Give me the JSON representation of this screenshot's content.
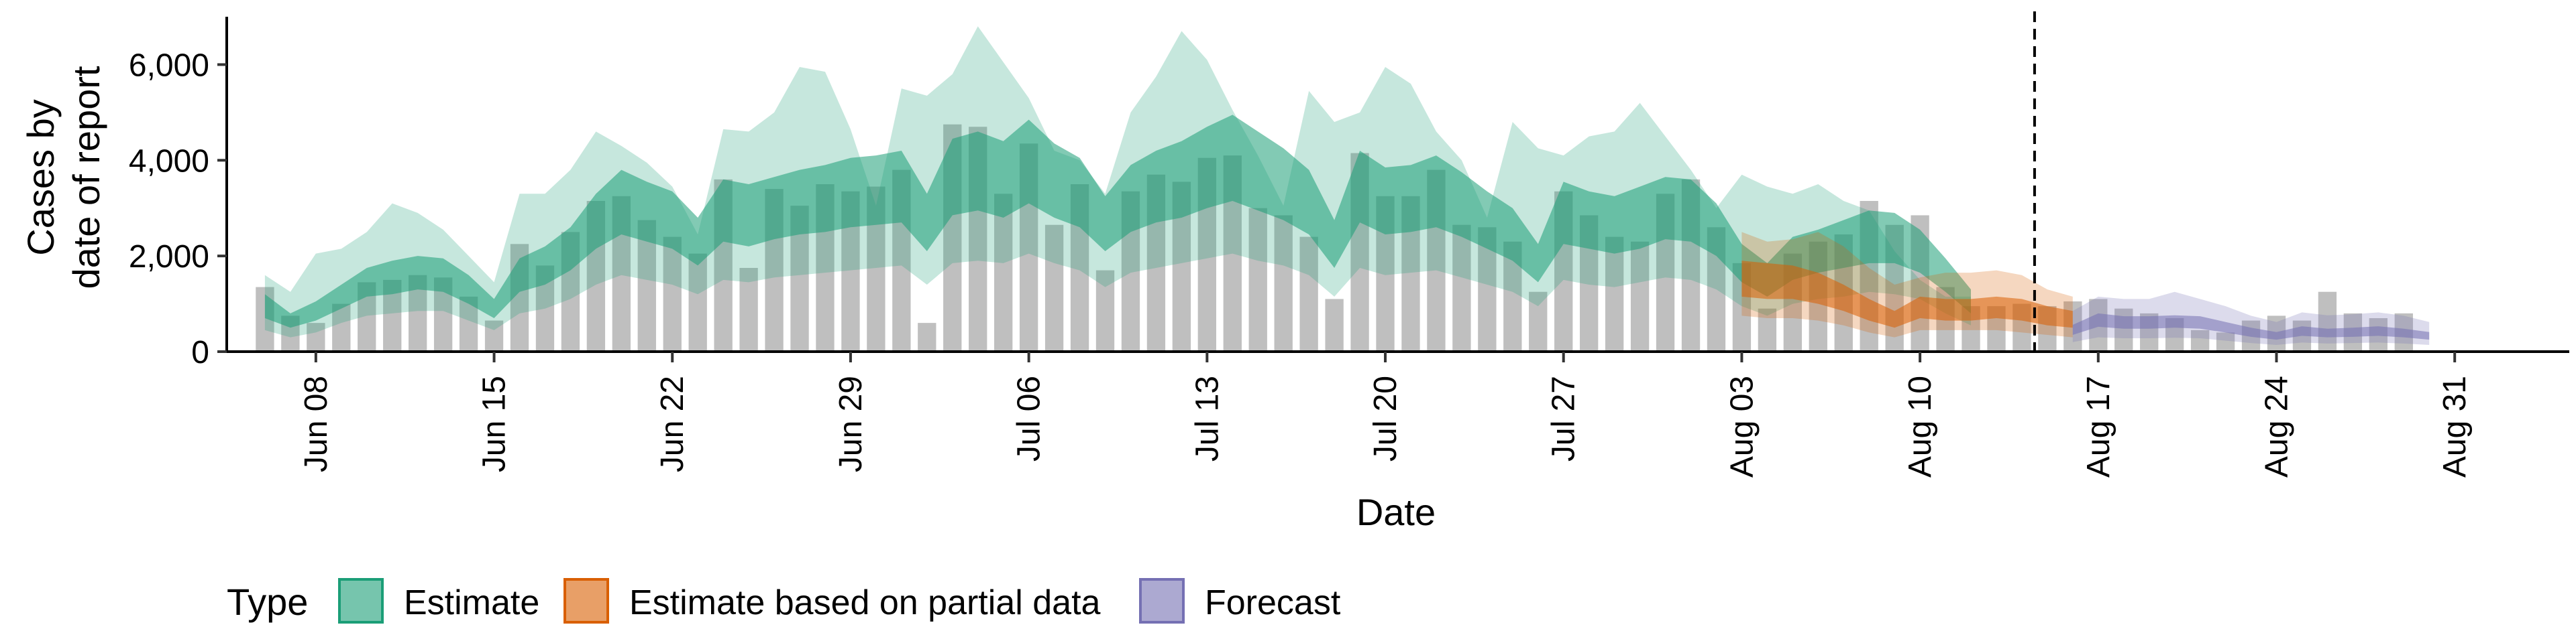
{
  "chart_data": {
    "type": "area",
    "title": "",
    "xlabel": "Date",
    "ylabel_lines": [
      "Cases by",
      "date of report"
    ],
    "ylim": [
      0,
      7000
    ],
    "yticks": [
      0,
      2000,
      4000,
      6000
    ],
    "ytick_labels": [
      "0",
      "2,000",
      "4,000",
      "6,000"
    ],
    "x_start": "2020-06-06",
    "xlim_days": [
      -1.5,
      90.5
    ],
    "xticks_days": [
      2,
      9,
      16,
      23,
      30,
      37,
      44,
      51,
      58,
      65,
      72,
      79,
      86
    ],
    "xtick_labels": [
      "Jun 08",
      "Jun 15",
      "Jun 22",
      "Jun 29",
      "Jul 06",
      "Jul 13",
      "Jul 20",
      "Jul 27",
      "Aug 03",
      "Aug 10",
      "Aug 17",
      "Aug 24",
      "Aug 31"
    ],
    "forecast_date_day": 69.5,
    "colors": {
      "bars": "#a9a9a9",
      "estimate": "#1b9e77",
      "partial": "#d95f02",
      "forecast": "#7570b3"
    },
    "legend": {
      "title": "Type",
      "entries": [
        {
          "key": "estimate",
          "label": "Estimate"
        },
        {
          "key": "partial",
          "label": "Estimate based on partial data"
        },
        {
          "key": "forecast",
          "label": "Forecast"
        }
      ]
    },
    "observed_cases": {
      "start_day": 0,
      "values": [
        1350,
        750,
        600,
        1000,
        1450,
        1500,
        1600,
        1550,
        1150,
        650,
        2250,
        1800,
        2500,
        3150,
        3250,
        2750,
        2400,
        2050,
        3600,
        1750,
        3400,
        3050,
        3500,
        3350,
        3450,
        3800,
        600,
        4750,
        4700,
        3300,
        4350,
        2650,
        3500,
        1700,
        3350,
        3700,
        3550,
        4050,
        4100,
        3000,
        2850,
        2400,
        1100,
        4150,
        3250,
        3250,
        3800,
        2650,
        2600,
        2300,
        1250,
        3350,
        2850,
        2400,
        2300,
        3300,
        3600,
        2600,
        1850,
        900,
        2050,
        2300,
        2450,
        3150,
        2650,
        2850,
        1350,
        950,
        950,
        1000,
        950,
        1050,
        1100,
        900,
        800,
        700,
        450,
        400,
        650,
        750,
        650,
        1250,
        800,
        700,
        800
      ]
    },
    "estimate": {
      "start_day": 0,
      "median": [
        950,
        650,
        850,
        1150,
        1450,
        1550,
        1650,
        1600,
        1300,
        900,
        1600,
        1800,
        2150,
        2700,
        3100,
        2900,
        2750,
        2300,
        2950,
        2850,
        3000,
        3100,
        3200,
        3300,
        3350,
        3450,
        2700,
        3650,
        3750,
        3600,
        3950,
        3550,
        3300,
        2650,
        3200,
        3450,
        3600,
        3850,
        4050,
        3750,
        3500,
        3100,
        2250,
        3450,
        3150,
        3200,
        3350,
        3050,
        2750,
        2450,
        1850,
        2900,
        2750,
        2650,
        2800,
        3000,
        2950,
        2550,
        1850,
        1500,
        1950,
        2100,
        2250,
        2400,
        2350,
        2100,
        1600,
        1050
      ],
      "lower_50": [
        700,
        500,
        650,
        900,
        1150,
        1200,
        1300,
        1250,
        1000,
        700,
        1250,
        1400,
        1700,
        2150,
        2450,
        2300,
        2150,
        1800,
        2300,
        2200,
        2350,
        2450,
        2500,
        2600,
        2650,
        2700,
        2100,
        2850,
        2950,
        2800,
        3100,
        2800,
        2600,
        2100,
        2500,
        2700,
        2800,
        3000,
        3150,
        2950,
        2750,
        2450,
        1750,
        2700,
        2450,
        2500,
        2600,
        2400,
        2150,
        1900,
        1450,
        2250,
        2150,
        2050,
        2150,
        2350,
        2300,
        2000,
        1450,
        1150,
        1500,
        1650,
        1750,
        1850,
        1850,
        1650,
        1250,
        800
      ],
      "upper_50": [
        1200,
        800,
        1050,
        1400,
        1750,
        1900,
        2000,
        1950,
        1600,
        1100,
        1950,
        2200,
        2600,
        3300,
        3800,
        3550,
        3350,
        2800,
        3600,
        3500,
        3650,
        3800,
        3900,
        4050,
        4100,
        4200,
        3300,
        4450,
        4600,
        4400,
        4850,
        4350,
        4050,
        3250,
        3900,
        4200,
        4400,
        4700,
        4950,
        4600,
        4250,
        3800,
        2750,
        4200,
        3850,
        3900,
        4100,
        3750,
        3350,
        3000,
        2250,
        3550,
        3350,
        3250,
        3450,
        3650,
        3600,
        3100,
        2250,
        1850,
        2400,
        2550,
        2750,
        2950,
        2900,
        2550,
        1950,
        1300
      ],
      "lower_90": [
        450,
        300,
        400,
        600,
        750,
        800,
        850,
        850,
        650,
        450,
        800,
        900,
        1100,
        1400,
        1600,
        1500,
        1400,
        1200,
        1500,
        1450,
        1550,
        1600,
        1650,
        1700,
        1750,
        1800,
        1400,
        1850,
        1900,
        1850,
        2050,
        1850,
        1700,
        1350,
        1650,
        1750,
        1850,
        1950,
        2050,
        1900,
        1800,
        1600,
        1150,
        1750,
        1600,
        1650,
        1700,
        1550,
        1400,
        1250,
        950,
        1500,
        1400,
        1350,
        1450,
        1550,
        1500,
        1300,
        950,
        750,
        1000,
        1100,
        1150,
        1250,
        1200,
        1100,
        800,
        550
      ],
      "upper_90": [
        1600,
        1250,
        2050,
        2150,
        2500,
        3100,
        2900,
        2550,
        2000,
        1450,
        3300,
        3300,
        3800,
        4600,
        4300,
        3950,
        3450,
        2450,
        4650,
        4600,
        5000,
        5950,
        5850,
        4650,
        3050,
        5500,
        5350,
        5800,
        6800,
        6050,
        5300,
        4200,
        4000,
        3300,
        5000,
        5750,
        6700,
        6100,
        5050,
        4100,
        3050,
        5450,
        4800,
        5000,
        5950,
        5600,
        4600,
        4000,
        2800,
        4800,
        4250,
        4100,
        4500,
        4600,
        5200,
        4500,
        3800,
        3000,
        3700,
        3450,
        3300,
        3500,
        3150,
        2950,
        2100,
        1500,
        1150,
        1150
      ]
    },
    "partial": {
      "start_day": 58,
      "median": [
        1550,
        1500,
        1450,
        1300,
        1100,
        850,
        650,
        900,
        850,
        850,
        900,
        850,
        750,
        650
      ],
      "lower_50": [
        1150,
        1100,
        1100,
        1000,
        850,
        650,
        500,
        700,
        650,
        650,
        700,
        650,
        550,
        500
      ],
      "upper_50": [
        1900,
        1850,
        1800,
        1650,
        1400,
        1100,
        850,
        1150,
        1100,
        1100,
        1150,
        1100,
        950,
        850
      ],
      "lower_90": [
        750,
        700,
        700,
        650,
        550,
        400,
        300,
        450,
        450,
        450,
        450,
        400,
        350,
        300
      ],
      "upper_90": [
        2500,
        2300,
        2350,
        2500,
        2200,
        1750,
        1400,
        1550,
        1650,
        1650,
        1700,
        1600,
        1300,
        1150
      ]
    },
    "forecast": {
      "start_day": 71,
      "median": [
        450,
        650,
        600,
        600,
        620,
        600,
        500,
        400,
        320,
        420,
        380,
        400,
        420,
        380,
        320
      ],
      "lower_50": [
        350,
        520,
        480,
        480,
        500,
        480,
        400,
        310,
        250,
        330,
        300,
        310,
        330,
        300,
        250
      ],
      "upper_50": [
        560,
        800,
        740,
        740,
        760,
        740,
        620,
        500,
        410,
        530,
        480,
        500,
        530,
        480,
        410
      ],
      "lower_90": [
        200,
        300,
        280,
        280,
        290,
        280,
        230,
        180,
        140,
        190,
        170,
        180,
        190,
        170,
        140
      ],
      "upper_90": [
        850,
        1150,
        1100,
        1100,
        1250,
        1100,
        950,
        750,
        620,
        820,
        760,
        780,
        820,
        750,
        620
      ]
    }
  }
}
